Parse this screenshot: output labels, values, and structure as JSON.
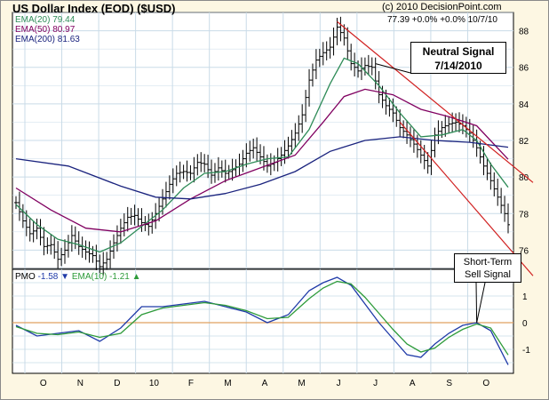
{
  "header": {
    "title": "US Dollar Index (EOD) ($USD)",
    "credit": "(c) 2010 DecisionPoint.com",
    "stats": "77.39 +0.0% +0.0%  10/7/10"
  },
  "legend": {
    "ema20": "EMA(20) 79.44",
    "ema50": "EMA(50) 80.97",
    "ema200": "EMA(200) 81.63",
    "pmo_label": "PMO",
    "pmo_value": "-1.58",
    "pmo_ema_label": "EMA(10)",
    "pmo_ema_value": "-1.21"
  },
  "annotations": {
    "neutral_line1": "Neutral Signal",
    "neutral_line2": "7/14/2010",
    "sell_line1": "Short-Term",
    "sell_line2": "Sell Signal"
  },
  "colors": {
    "background": "#fdf7e3",
    "plot_bg": "#ffffff",
    "grid": "#c9dbe8",
    "price": "#000000",
    "ema20": "#2e8b57",
    "ema50": "#800060",
    "ema200": "#1a237e",
    "pmo": "#1f3aa8",
    "pmo_signal": "#2e9b3a",
    "zero_line": "#e0a060",
    "channel": "#d02020",
    "down_arrow": "#1f3aa8",
    "up_arrow": "#2e9b3a"
  },
  "chart_data": [
    {
      "type": "ohlc",
      "name": "price_panel",
      "x_tick_labels": [
        "O",
        "N",
        "D",
        "10",
        "F",
        "M",
        "A",
        "M",
        "J",
        "J",
        "A",
        "S",
        "O"
      ],
      "y_ticks": [
        76,
        78,
        80,
        82,
        84,
        86,
        88
      ],
      "ylim": [
        75,
        89
      ],
      "grid": true,
      "close_series": [
        [
          0,
          78.6
        ],
        [
          2,
          77.6
        ],
        [
          4,
          76.9
        ],
        [
          6,
          77.2
        ],
        [
          8,
          76.2
        ],
        [
          10,
          76.3
        ],
        [
          12,
          75.5
        ],
        [
          14,
          76.0
        ],
        [
          16,
          76.8
        ],
        [
          18,
          76.2
        ],
        [
          20,
          75.9
        ],
        [
          22,
          75.7
        ],
        [
          24,
          75.1
        ],
        [
          26,
          75.5
        ],
        [
          28,
          76.4
        ],
        [
          30,
          77.2
        ],
        [
          32,
          77.8
        ],
        [
          34,
          77.9
        ],
        [
          36,
          77.5
        ],
        [
          38,
          77.3
        ],
        [
          40,
          78.0
        ],
        [
          42,
          78.8
        ],
        [
          44,
          79.6
        ],
        [
          46,
          80.2
        ],
        [
          48,
          80.3
        ],
        [
          50,
          80.2
        ],
        [
          52,
          80.8
        ],
        [
          54,
          80.7
        ],
        [
          56,
          80.1
        ],
        [
          58,
          80.5
        ],
        [
          60,
          80.2
        ],
        [
          62,
          80.4
        ],
        [
          64,
          80.7
        ],
        [
          66,
          81.3
        ],
        [
          68,
          81.6
        ],
        [
          70,
          81.1
        ],
        [
          72,
          80.6
        ],
        [
          74,
          80.8
        ],
        [
          76,
          81.2
        ],
        [
          78,
          81.7
        ],
        [
          80,
          82.4
        ],
        [
          82,
          83.4
        ],
        [
          84,
          85.3
        ],
        [
          86,
          86.4
        ],
        [
          88,
          86.8
        ],
        [
          90,
          87.1
        ],
        [
          92,
          88.2
        ],
        [
          94,
          87.6
        ],
        [
          96,
          86.2
        ],
        [
          98,
          85.8
        ],
        [
          100,
          86.1
        ],
        [
          102,
          86.0
        ],
        [
          104,
          84.5
        ],
        [
          106,
          83.9
        ],
        [
          108,
          83.5
        ],
        [
          110,
          82.7
        ],
        [
          112,
          82.3
        ],
        [
          114,
          81.8
        ],
        [
          116,
          81.2
        ],
        [
          118,
          80.6
        ],
        [
          120,
          82.3
        ],
        [
          122,
          82.7
        ],
        [
          124,
          82.9
        ],
        [
          126,
          83.0
        ],
        [
          128,
          82.8
        ],
        [
          130,
          82.4
        ],
        [
          132,
          81.6
        ],
        [
          134,
          80.6
        ],
        [
          136,
          79.8
        ],
        [
          138,
          78.9
        ],
        [
          140,
          78.0
        ],
        [
          141,
          77.39
        ]
      ],
      "series": [
        {
          "name": "EMA(20)",
          "values": [
            [
              0,
              78.5
            ],
            [
              6,
              77.4
            ],
            [
              12,
              76.6
            ],
            [
              18,
              76.3
            ],
            [
              24,
              75.9
            ],
            [
              30,
              76.4
            ],
            [
              36,
              77.3
            ],
            [
              42,
              78.2
            ],
            [
              48,
              79.4
            ],
            [
              54,
              80.2
            ],
            [
              60,
              80.3
            ],
            [
              66,
              80.7
            ],
            [
              72,
              81.0
            ],
            [
              78,
              81.1
            ],
            [
              84,
              82.6
            ],
            [
              90,
              85.1
            ],
            [
              94,
              86.5
            ],
            [
              98,
              86.2
            ],
            [
              104,
              85.0
            ],
            [
              110,
              83.5
            ],
            [
              116,
              82.2
            ],
            [
              122,
              82.3
            ],
            [
              128,
              82.6
            ],
            [
              132,
              82.0
            ],
            [
              136,
              80.7
            ],
            [
              141,
              79.44
            ]
          ]
        },
        {
          "name": "EMA(50)",
          "values": [
            [
              0,
              79.4
            ],
            [
              10,
              78.2
            ],
            [
              20,
              77.2
            ],
            [
              30,
              77.0
            ],
            [
              40,
              77.6
            ],
            [
              50,
              78.8
            ],
            [
              60,
              79.8
            ],
            [
              70,
              80.5
            ],
            [
              80,
              81.2
            ],
            [
              88,
              83.0
            ],
            [
              94,
              84.4
            ],
            [
              100,
              84.8
            ],
            [
              108,
              84.5
            ],
            [
              116,
              83.7
            ],
            [
              124,
              83.3
            ],
            [
              132,
              82.8
            ],
            [
              141,
              80.97
            ]
          ]
        },
        {
          "name": "EMA(200)",
          "values": [
            [
              0,
              81.0
            ],
            [
              15,
              80.6
            ],
            [
              30,
              79.5
            ],
            [
              40,
              78.9
            ],
            [
              50,
              78.8
            ],
            [
              60,
              79.1
            ],
            [
              70,
              79.6
            ],
            [
              80,
              80.3
            ],
            [
              90,
              81.4
            ],
            [
              100,
              82.0
            ],
            [
              110,
              82.2
            ],
            [
              120,
              82.0
            ],
            [
              130,
              81.9
            ],
            [
              141,
              81.63
            ]
          ]
        }
      ]
    },
    {
      "type": "line",
      "name": "pmo_panel",
      "y_ticks": [
        -1,
        0,
        1
      ],
      "ylim": [
        -1.9,
        2.0
      ],
      "grid": true,
      "series": [
        {
          "name": "PMO",
          "values": [
            [
              0,
              -0.1
            ],
            [
              6,
              -0.5
            ],
            [
              12,
              -0.4
            ],
            [
              18,
              -0.3
            ],
            [
              24,
              -0.7
            ],
            [
              30,
              -0.2
            ],
            [
              36,
              0.6
            ],
            [
              42,
              0.6
            ],
            [
              48,
              0.7
            ],
            [
              54,
              0.8
            ],
            [
              60,
              0.6
            ],
            [
              66,
              0.4
            ],
            [
              72,
              0.0
            ],
            [
              78,
              0.3
            ],
            [
              84,
              1.2
            ],
            [
              88,
              1.5
            ],
            [
              92,
              1.7
            ],
            [
              96,
              1.4
            ],
            [
              100,
              0.7
            ],
            [
              104,
              0.0
            ],
            [
              108,
              -0.6
            ],
            [
              112,
              -1.2
            ],
            [
              116,
              -1.3
            ],
            [
              120,
              -0.8
            ],
            [
              124,
              -0.4
            ],
            [
              128,
              -0.1
            ],
            [
              132,
              0.0
            ],
            [
              136,
              -0.3
            ],
            [
              141,
              -1.58
            ]
          ]
        },
        {
          "name": "EMA(10)",
          "values": [
            [
              0,
              -0.15
            ],
            [
              6,
              -0.4
            ],
            [
              12,
              -0.45
            ],
            [
              18,
              -0.35
            ],
            [
              24,
              -0.55
            ],
            [
              30,
              -0.4
            ],
            [
              36,
              0.3
            ],
            [
              42,
              0.55
            ],
            [
              48,
              0.65
            ],
            [
              54,
              0.75
            ],
            [
              60,
              0.65
            ],
            [
              66,
              0.45
            ],
            [
              72,
              0.15
            ],
            [
              78,
              0.2
            ],
            [
              84,
              0.9
            ],
            [
              88,
              1.3
            ],
            [
              92,
              1.55
            ],
            [
              96,
              1.45
            ],
            [
              100,
              0.95
            ],
            [
              104,
              0.35
            ],
            [
              108,
              -0.25
            ],
            [
              112,
              -0.8
            ],
            [
              116,
              -1.1
            ],
            [
              120,
              -0.95
            ],
            [
              124,
              -0.55
            ],
            [
              128,
              -0.25
            ],
            [
              132,
              -0.05
            ],
            [
              136,
              -0.2
            ],
            [
              141,
              -1.21
            ]
          ]
        }
      ]
    }
  ]
}
